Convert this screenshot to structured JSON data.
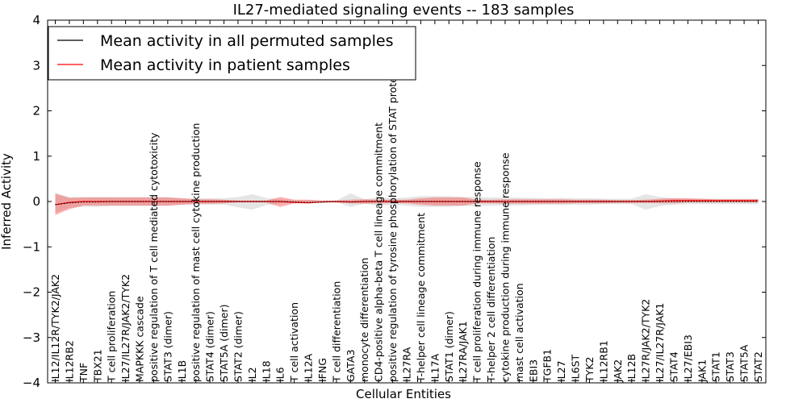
{
  "chart_data": {
    "type": "line",
    "title": "IL27-mediated signaling events -- 183 samples",
    "xlabel": "Cellular Entities",
    "ylabel": "Inferred Activity",
    "ylim": [
      -4,
      4
    ],
    "yticks": [
      "−4",
      "−3",
      "−2",
      "−1",
      "0",
      "1",
      "2",
      "3",
      "4"
    ],
    "ytick_values": [
      -4,
      -3,
      -2,
      -1,
      0,
      1,
      2,
      3,
      4
    ],
    "legend": {
      "placement": "top-left",
      "entries": [
        {
          "label": "Mean activity in all permuted samples",
          "color": "#000000"
        },
        {
          "label": "Mean activity in patient samples",
          "color": "#ff0000"
        }
      ]
    },
    "categories": [
      "IL12/IL12R/TYK2/JAK2",
      "IL12RB2",
      "TNF",
      "TBX21",
      "T cell proliferation",
      "IL27/IL27R/JAK2/TYK2",
      "MAPKKK cascade",
      "positive regulation of T cell mediated cytotoxicity",
      "STAT3 (dimer)",
      "IL1B",
      "positive regulation of mast cell cytokine production",
      "STAT4 (dimer)",
      "STAT5A (dimer)",
      "STAT2 (dimer)",
      "IL2",
      "IL18",
      "IL6",
      "T cell activation",
      "IL12A",
      "IFNG",
      "T cell differentiation",
      "GATA3",
      "monocyte differentiation",
      "CD4-positive alpha-beta T cell lineage commitment",
      "positive regulation of tyrosine phosphorylation of STAT protein",
      "IL27RA",
      "T-helper cell lineage commitment",
      "IL17A",
      "STAT1 (dimer)",
      "IL27RA/JAK1",
      "T cell proliferation during immune response",
      "T-helper 2 cell differentiation",
      "cytokine production during immune response",
      "mast cell activation",
      "EBI3",
      "TGFB1",
      "IL27",
      "IL6ST",
      "TYK2",
      "IL12RB1",
      "JAK2",
      "IL12B",
      "IL27R/JAK2/TYK2",
      "IL27/IL27R/JAK1",
      "STAT4",
      "IL27/EBI3",
      "JAK1",
      "STAT1",
      "STAT3",
      "STAT5A",
      "STAT2"
    ],
    "series": [
      {
        "name": "Mean activity in patient samples",
        "color": "#ff0000",
        "values": [
          -0.07,
          -0.02,
          0.0,
          0.0,
          0.0,
          0.0,
          0.0,
          0.0,
          0.0,
          0.0,
          0.0,
          0.0,
          0.0,
          0.0,
          0.0,
          0.0,
          0.0,
          -0.02,
          -0.03,
          -0.01,
          0.0,
          -0.01,
          0.0,
          0.0,
          0.0,
          0.0,
          0.0,
          0.0,
          0.0,
          0.0,
          0.0,
          0.0,
          0.0,
          0.0,
          0.0,
          0.0,
          0.0,
          0.0,
          0.0,
          0.0,
          0.0,
          0.0,
          0.0,
          0.01,
          0.02,
          0.02,
          0.02,
          0.02,
          0.02,
          0.02,
          0.02
        ],
        "band_lower": [
          -0.3,
          -0.17,
          -0.09,
          -0.09,
          -0.09,
          -0.09,
          -0.09,
          -0.09,
          -0.09,
          -0.07,
          -0.05,
          -0.05,
          -0.04,
          -0.02,
          -0.02,
          -0.02,
          -0.12,
          -0.04,
          -0.04,
          -0.02,
          -0.02,
          -0.04,
          -0.05,
          -0.04,
          -0.04,
          -0.04,
          -0.07,
          -0.09,
          -0.09,
          -0.09,
          -0.04,
          -0.04,
          -0.05,
          -0.05,
          -0.05,
          -0.05,
          -0.05,
          -0.04,
          -0.04,
          -0.04,
          -0.03,
          -0.03,
          -0.03,
          -0.04,
          -0.04,
          -0.02,
          -0.02,
          -0.02,
          -0.02,
          -0.02,
          -0.02
        ],
        "band_upper": [
          0.17,
          0.08,
          0.09,
          0.09,
          0.09,
          0.09,
          0.09,
          0.09,
          0.09,
          0.07,
          0.05,
          0.05,
          0.04,
          0.02,
          0.02,
          0.02,
          0.1,
          0.04,
          0.04,
          0.02,
          0.02,
          0.04,
          0.05,
          0.04,
          0.04,
          0.04,
          0.07,
          0.09,
          0.09,
          0.09,
          0.04,
          0.04,
          0.05,
          0.05,
          0.05,
          0.05,
          0.05,
          0.04,
          0.04,
          0.04,
          0.03,
          0.03,
          0.04,
          0.06,
          0.07,
          0.07,
          0.06,
          0.05,
          0.05,
          0.05,
          0.05
        ]
      },
      {
        "name": "Mean activity in all permuted samples",
        "color": "#000000",
        "values": [
          -0.07,
          -0.03,
          -0.01,
          -0.01,
          0.0,
          0.0,
          0.0,
          0.0,
          0.0,
          0.0,
          0.0,
          0.0,
          0.0,
          0.0,
          0.0,
          0.0,
          0.0,
          -0.01,
          -0.02,
          -0.01,
          0.0,
          -0.01,
          0.0,
          0.0,
          0.0,
          0.0,
          0.0,
          0.0,
          0.0,
          0.0,
          0.0,
          0.0,
          0.0,
          0.0,
          0.0,
          0.0,
          0.0,
          0.0,
          0.0,
          0.0,
          0.0,
          0.0,
          0.0,
          0.0,
          0.0,
          0.0,
          0.0,
          0.0,
          0.0,
          0.0,
          0.0
        ],
        "band_lower": [
          -0.25,
          -0.14,
          -0.12,
          -0.12,
          -0.1,
          -0.1,
          -0.1,
          -0.1,
          -0.1,
          -0.07,
          -0.07,
          -0.07,
          -0.07,
          -0.13,
          -0.18,
          -0.08,
          -0.05,
          -0.03,
          -0.03,
          -0.03,
          -0.02,
          -0.12,
          -0.05,
          -0.09,
          -0.07,
          -0.09,
          -0.12,
          -0.12,
          -0.12,
          -0.1,
          -0.1,
          -0.09,
          -0.09,
          -0.09,
          -0.08,
          -0.07,
          -0.08,
          -0.07,
          -0.07,
          -0.06,
          -0.06,
          -0.06,
          -0.18,
          -0.1,
          -0.07,
          -0.06,
          -0.06,
          -0.06,
          -0.06,
          -0.06,
          -0.06
        ],
        "band_upper": [
          0.2,
          0.1,
          0.1,
          0.1,
          0.1,
          0.1,
          0.1,
          0.1,
          0.1,
          0.07,
          0.07,
          0.07,
          0.07,
          0.1,
          0.16,
          0.08,
          0.05,
          0.03,
          0.03,
          0.03,
          0.02,
          0.18,
          0.05,
          0.09,
          0.07,
          0.09,
          0.12,
          0.12,
          0.12,
          0.1,
          0.1,
          0.09,
          0.09,
          0.09,
          0.08,
          0.07,
          0.08,
          0.07,
          0.07,
          0.06,
          0.06,
          0.06,
          0.16,
          0.1,
          0.07,
          0.06,
          0.06,
          0.06,
          0.06,
          0.06,
          0.06
        ]
      }
    ]
  }
}
